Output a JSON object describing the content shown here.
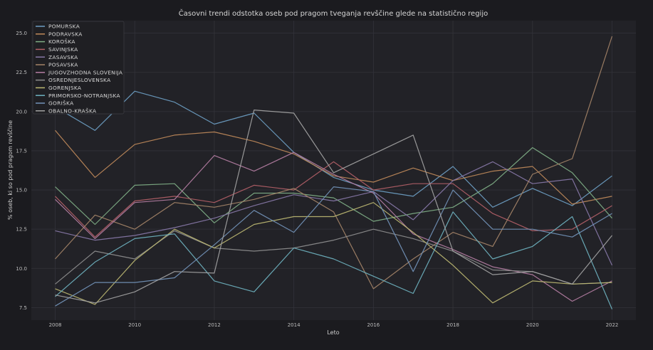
{
  "chart_data": {
    "type": "line",
    "title": "Časovni trendi odstotka oseb pod pragom tveganja revščine glede na statistično regijo",
    "xlabel": "Leto",
    "ylabel": "% oseb, ki so pod pragom revščine",
    "x": [
      2008,
      2009,
      2010,
      2011,
      2012,
      2013,
      2014,
      2015,
      2016,
      2017,
      2018,
      2019,
      2020,
      2021,
      2022
    ],
    "xticks": [
      {
        "value": 2008,
        "label": "2008"
      },
      {
        "value": 2010,
        "label": "2010"
      },
      {
        "value": 2012,
        "label": "2012"
      },
      {
        "value": 2014,
        "label": "2014"
      },
      {
        "value": 2016,
        "label": "2016"
      },
      {
        "value": 2018,
        "label": "2018"
      },
      {
        "value": 2020,
        "label": "2020"
      },
      {
        "value": 2022,
        "label": "2022"
      }
    ],
    "yticks": [
      {
        "value": 7.5,
        "label": "7.5"
      },
      {
        "value": 10.0,
        "label": "10.0"
      },
      {
        "value": 12.5,
        "label": "12.5"
      },
      {
        "value": 15.0,
        "label": "15.0"
      },
      {
        "value": 17.5,
        "label": "17.5"
      },
      {
        "value": 20.0,
        "label": "20.0"
      },
      {
        "value": 22.5,
        "label": "22.5"
      },
      {
        "value": 25.0,
        "label": "25.0"
      }
    ],
    "xlim": [
      2007.4,
      2022.6
    ],
    "ylim": [
      6.7,
      25.8
    ],
    "grid": true,
    "legend_position": "top-left",
    "series": [
      {
        "name": "POMURSKA",
        "color": "#6e9fc4",
        "values": [
          20.3,
          18.8,
          21.3,
          20.6,
          19.2,
          19.9,
          17.4,
          15.8,
          15.0,
          14.6,
          16.5,
          13.9,
          15.1,
          14.0,
          15.9
        ]
      },
      {
        "name": "PODRAVSKA",
        "color": "#c08a5a",
        "values": [
          18.8,
          15.8,
          17.9,
          18.5,
          18.7,
          18.1,
          17.3,
          15.9,
          15.5,
          16.4,
          15.6,
          16.2,
          16.5,
          14.1,
          14.6
        ]
      },
      {
        "name": "KOROŠKA",
        "color": "#7fae85",
        "values": [
          15.2,
          12.8,
          15.3,
          15.4,
          12.9,
          14.8,
          14.8,
          14.5,
          13.0,
          13.5,
          13.9,
          15.4,
          17.7,
          16.1,
          13.2
        ]
      },
      {
        "name": "SAVINJSKA",
        "color": "#b36067",
        "values": [
          14.6,
          12.0,
          14.3,
          14.6,
          14.2,
          15.3,
          15.0,
          16.8,
          15.0,
          15.4,
          15.4,
          13.5,
          12.4,
          12.5,
          14.0
        ]
      },
      {
        "name": "ZASAVSKA",
        "color": "#8878a8",
        "values": [
          12.4,
          11.8,
          12.1,
          12.6,
          13.2,
          14.0,
          14.7,
          14.3,
          14.9,
          13.1,
          15.6,
          16.8,
          15.4,
          15.7,
          10.2
        ]
      },
      {
        "name": "POSAVSKA",
        "color": "#a58468",
        "values": [
          10.6,
          13.4,
          12.5,
          14.2,
          13.9,
          14.4,
          15.1,
          13.6,
          8.7,
          10.6,
          12.3,
          11.4,
          16.0,
          17.0,
          24.8
        ]
      },
      {
        "name": "JUGOVZHODNA SLOVENIJA",
        "color": "#b57ea3",
        "values": [
          14.4,
          11.9,
          14.2,
          14.4,
          17.2,
          16.2,
          17.4,
          16.0,
          14.8,
          12.2,
          11.2,
          10.1,
          9.6,
          7.9,
          9.2
        ]
      },
      {
        "name": "OSREDNJESLOVENSKA",
        "color": "#8e8e8e",
        "values": [
          9.0,
          11.1,
          10.6,
          12.4,
          11.3,
          11.1,
          11.3,
          11.8,
          12.5,
          11.9,
          11.1,
          9.9,
          9.8,
          9.0,
          9.1
        ]
      },
      {
        "name": "GORENJSKA",
        "color": "#bdb872",
        "values": [
          8.7,
          7.7,
          10.5,
          12.5,
          11.3,
          12.8,
          13.3,
          13.3,
          14.2,
          12.3,
          10.2,
          7.8,
          9.2,
          9.0,
          9.1
        ]
      },
      {
        "name": "PRIMORSKO-NOTRANJSKA",
        "color": "#6fb3c0",
        "values": [
          8.2,
          10.4,
          11.9,
          12.2,
          9.2,
          8.5,
          11.3,
          10.6,
          9.5,
          8.4,
          13.6,
          10.6,
          11.4,
          13.3,
          7.4
        ]
      },
      {
        "name": "GORIŠKA",
        "color": "#7394ba",
        "values": [
          7.6,
          9.1,
          9.1,
          9.4,
          11.5,
          13.7,
          12.3,
          15.2,
          14.9,
          9.8,
          15.0,
          12.5,
          12.5,
          12.0,
          13.5
        ]
      },
      {
        "name": "OBALNO-KRAŠKA",
        "color": "#a3a3a3",
        "values": [
          8.3,
          7.8,
          8.5,
          9.8,
          9.7,
          20.1,
          19.9,
          16.1,
          17.3,
          18.5,
          11.1,
          9.6,
          9.8,
          9.0,
          12.1
        ]
      }
    ]
  }
}
